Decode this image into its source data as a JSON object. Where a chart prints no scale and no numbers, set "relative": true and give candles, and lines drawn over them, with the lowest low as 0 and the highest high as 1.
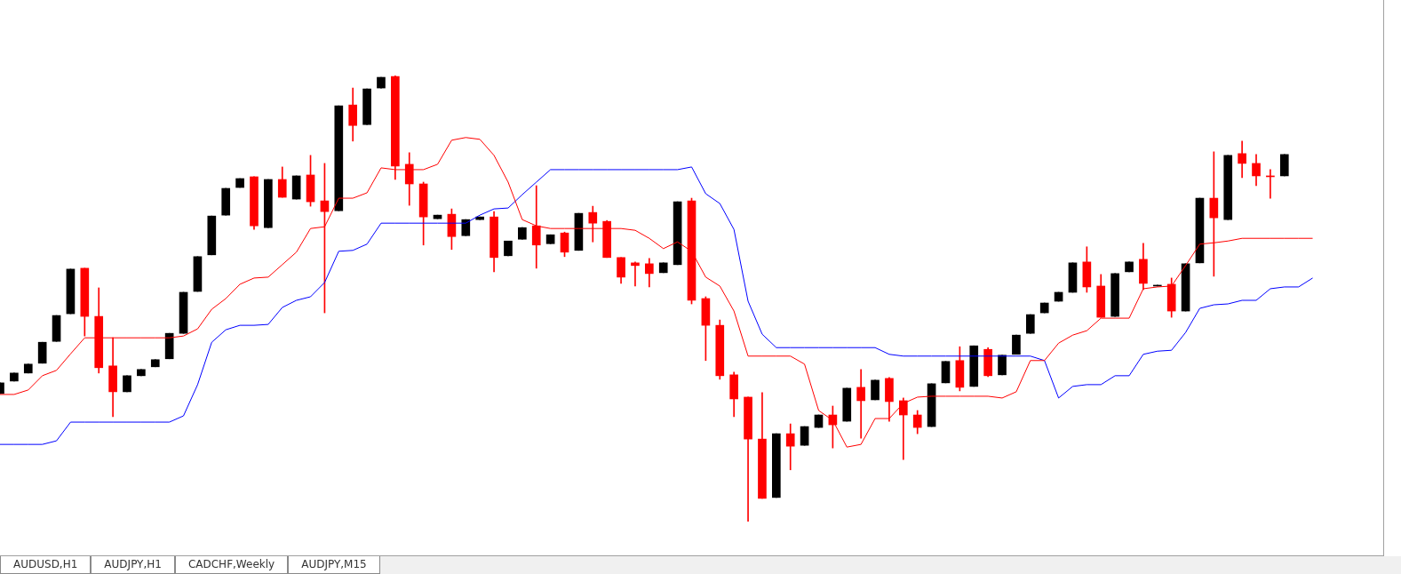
{
  "chart_data": {
    "type": "candlestick",
    "relative": true,
    "categories": [
      null,
      null,
      null,
      null,
      null,
      null,
      null,
      null,
      null,
      null,
      null,
      null,
      null,
      null,
      null,
      null,
      null,
      null,
      null,
      null,
      null,
      null,
      null,
      null,
      null,
      null,
      null,
      null,
      null,
      null,
      null,
      null,
      null,
      null,
      null,
      null,
      null,
      null,
      null,
      null,
      null,
      null,
      null,
      null,
      null,
      null,
      null,
      null,
      null,
      null,
      null,
      null,
      null,
      null,
      null,
      null,
      null,
      null,
      null,
      null,
      null,
      null,
      null,
      null,
      null,
      null,
      null,
      null,
      null,
      null,
      null,
      null,
      null,
      null,
      null,
      null,
      null,
      null,
      null,
      null,
      null,
      null,
      null,
      null,
      null,
      null,
      null,
      null,
      null,
      null,
      null,
      null,
      null,
      null,
      null,
      null,
      null,
      null,
      null
    ],
    "ohlc": [
      [
        0.287,
        0.311,
        0.287,
        0.311
      ],
      [
        0.315,
        0.333,
        0.315,
        0.333
      ],
      [
        0.333,
        0.353,
        0.333,
        0.353
      ],
      [
        0.355,
        0.402,
        0.355,
        0.402
      ],
      [
        0.404,
        0.462,
        0.404,
        0.462
      ],
      [
        0.466,
        0.566,
        0.466,
        0.566
      ],
      [
        0.568,
        0.568,
        0.416,
        0.46
      ],
      [
        0.46,
        0.524,
        0.333,
        0.345
      ],
      [
        0.349,
        0.412,
        0.235,
        0.291
      ],
      [
        0.291,
        0.327,
        0.291,
        0.327
      ],
      [
        0.327,
        0.341,
        0.327,
        0.341
      ],
      [
        0.347,
        0.363,
        0.347,
        0.363
      ],
      [
        0.365,
        0.422,
        0.365,
        0.422
      ],
      [
        0.422,
        0.514,
        0.422,
        0.514
      ],
      [
        0.516,
        0.594,
        0.516,
        0.594
      ],
      [
        0.598,
        0.685,
        0.598,
        0.685
      ],
      [
        0.687,
        0.747,
        0.687,
        0.747
      ],
      [
        0.749,
        0.769,
        0.749,
        0.769
      ],
      [
        0.773,
        0.773,
        0.655,
        0.663
      ],
      [
        0.659,
        0.767,
        0.659,
        0.767
      ],
      [
        0.767,
        0.795,
        0.727,
        0.727
      ],
      [
        0.723,
        0.775,
        0.723,
        0.775
      ],
      [
        0.777,
        0.821,
        0.707,
        0.717
      ],
      [
        0.719,
        0.803,
        0.468,
        0.695
      ],
      [
        0.697,
        0.932,
        0.697,
        0.932
      ],
      [
        0.934,
        0.972,
        0.853,
        0.888
      ],
      [
        0.89,
        0.97,
        0.89,
        0.97
      ],
      [
        0.972,
        0.996,
        0.972,
        0.996
      ],
      [
        0.998,
        1,
        0.767,
        0.797
      ],
      [
        0.801,
        0.827,
        0.709,
        0.757
      ],
      [
        0.757,
        0.761,
        0.62,
        0.683
      ],
      [
        0.679,
        0.687,
        0.679,
        0.687
      ],
      [
        0.689,
        0.701,
        0.61,
        0.639
      ],
      [
        0.641,
        0.677,
        0.641,
        0.677
      ],
      [
        0.677,
        0.683,
        0.677,
        0.683
      ],
      [
        0.683,
        0.695,
        0.56,
        0.592
      ],
      [
        0.596,
        0.629,
        0.596,
        0.629
      ],
      [
        0.633,
        0.659,
        0.633,
        0.659
      ],
      [
        0.663,
        0.753,
        0.568,
        0.62
      ],
      [
        0.623,
        0.643,
        0.623,
        0.643
      ],
      [
        0.647,
        0.649,
        0.594,
        0.604
      ],
      [
        0.608,
        0.691,
        0.608,
        0.691
      ],
      [
        0.693,
        0.707,
        0.627,
        0.669
      ],
      [
        0.673,
        0.675,
        0.592,
        0.592
      ],
      [
        0.592,
        0.592,
        0.534,
        0.548
      ],
      [
        0.58,
        0.582,
        0.528,
        0.574
      ],
      [
        0.578,
        0.59,
        0.526,
        0.556
      ],
      [
        0.558,
        0.58,
        0.558,
        0.58
      ],
      [
        0.576,
        0.717,
        0.576,
        0.717
      ],
      [
        0.719,
        0.725,
        0.488,
        0.496
      ],
      [
        0.5,
        0.504,
        0.361,
        0.44
      ],
      [
        0.44,
        0.452,
        0.319,
        0.327
      ],
      [
        0.329,
        0.335,
        0.235,
        0.275
      ],
      [
        0.279,
        0.279,
        0,
        0.185
      ],
      [
        0.185,
        0.289,
        0.052,
        0.052
      ],
      [
        0.054,
        0.197,
        0.054,
        0.197
      ],
      [
        0.197,
        0.219,
        0.116,
        0.169
      ],
      [
        0.171,
        0.213,
        0.171,
        0.213
      ],
      [
        0.211,
        0.239,
        0.211,
        0.239
      ],
      [
        0.239,
        0.259,
        0.165,
        0.217
      ],
      [
        0.225,
        0.299,
        0.225,
        0.299
      ],
      [
        0.301,
        0.341,
        0.187,
        0.271
      ],
      [
        0.273,
        0.317,
        0.273,
        0.317
      ],
      [
        0.321,
        0.323,
        0.225,
        0.269
      ],
      [
        0.271,
        0.277,
        0.139,
        0.239
      ],
      [
        0.239,
        0.249,
        0.197,
        0.211
      ],
      [
        0.213,
        0.309,
        0.213,
        0.309
      ],
      [
        0.311,
        0.359,
        0.311,
        0.359
      ],
      [
        0.361,
        0.392,
        0.293,
        0.301
      ],
      [
        0.303,
        0.394,
        0.303,
        0.394
      ],
      [
        0.386,
        0.39,
        0.325,
        0.327
      ],
      [
        0.329,
        0.373,
        0.329,
        0.373
      ],
      [
        0.375,
        0.418,
        0.375,
        0.418
      ],
      [
        0.422,
        0.464,
        0.422,
        0.464
      ],
      [
        0.468,
        0.49,
        0.468,
        0.49
      ],
      [
        0.494,
        0.514,
        0.494,
        0.514
      ],
      [
        0.514,
        0.58,
        0.514,
        0.58
      ],
      [
        0.582,
        0.616,
        0.514,
        0.526
      ],
      [
        0.528,
        0.554,
        0.458,
        0.458
      ],
      [
        0.46,
        0.556,
        0.46,
        0.556
      ],
      [
        0.56,
        0.582,
        0.56,
        0.582
      ],
      [
        0.588,
        0.624,
        0.52,
        0.534
      ],
      [
        0.528,
        0.53,
        0.528,
        0.53
      ],
      [
        0.532,
        0.546,
        0.458,
        0.472
      ],
      [
        0.472,
        0.578,
        0.472,
        0.578
      ],
      [
        0.58,
        0.725,
        0.58,
        0.725
      ],
      [
        0.725,
        0.829,
        0.55,
        0.681
      ],
      [
        0.677,
        0.821,
        0.677,
        0.821
      ],
      [
        0.825,
        0.853,
        0.771,
        0.803
      ],
      [
        0.803,
        0.823,
        0.753,
        0.775
      ],
      [
        0.775,
        0.789,
        0.725,
        0.773
      ],
      [
        0.775,
        0.823,
        0.775,
        0.823
      ],
      null,
      null,
      null,
      null,
      null,
      null,
      null
    ],
    "colors": [
      "#000000",
      "#000000",
      "#000000",
      "#000000",
      "#000000",
      "#000000",
      "#ff0000",
      "#ff0000",
      "#ff0000",
      "#000000",
      "#000000",
      "#000000",
      "#000000",
      "#000000",
      "#000000",
      "#000000",
      "#000000",
      "#000000",
      "#ff0000",
      "#000000",
      "#ff0000",
      "#000000",
      "#ff0000",
      "#ff0000",
      "#000000",
      "#ff0000",
      "#000000",
      "#000000",
      "#ff0000",
      "#ff0000",
      "#ff0000",
      "#000000",
      "#ff0000",
      "#000000",
      "#000000",
      "#ff0000",
      "#000000",
      "#000000",
      "#ff0000",
      "#000000",
      "#ff0000",
      "#000000",
      "#ff0000",
      "#ff0000",
      "#ff0000",
      "#ff0000",
      "#ff0000",
      "#000000",
      "#000000",
      "#ff0000",
      "#ff0000",
      "#ff0000",
      "#ff0000",
      "#ff0000",
      "#ff0000",
      "#000000",
      "#ff0000",
      "#000000",
      "#000000",
      "#ff0000",
      "#000000",
      "#ff0000",
      "#000000",
      "#ff0000",
      "#ff0000",
      "#ff0000",
      "#000000",
      "#000000",
      "#ff0000",
      "#000000",
      "#ff0000",
      "#000000",
      "#000000",
      "#000000",
      "#000000",
      "#000000",
      "#000000",
      "#ff0000",
      "#ff0000",
      "#000000",
      "#000000",
      "#ff0000",
      "#000000",
      "#ff0000",
      "#000000",
      "#000000",
      "#ff0000",
      "#000000",
      "#ff0000",
      "#ff0000",
      "#ff0000",
      "#000000",
      null,
      null,
      null,
      null,
      null,
      null,
      null
    ],
    "series": [
      {
        "type": "line",
        "color": "#ff0000",
        "values": [
          0.285,
          0.285,
          0.295,
          0.327,
          0.339,
          0.376,
          0.412,
          0.412,
          0.412,
          0.412,
          0.412,
          0.412,
          0.412,
          0.416,
          0.432,
          0.476,
          0.5,
          0.532,
          0.546,
          0.548,
          0.576,
          0.604,
          0.657,
          0.661,
          0.725,
          0.725,
          0.737,
          0.793,
          0.789,
          0.789,
          0.789,
          0.801,
          0.855,
          0.861,
          0.857,
          0.821,
          0.761,
          0.677,
          0.663,
          0.657,
          0.657,
          0.657,
          0.657,
          0.657,
          0.657,
          0.653,
          0.635,
          0.612,
          0.627,
          0.606,
          0.548,
          0.528,
          0.472,
          0.371,
          0.371,
          0.371,
          0.371,
          0.353,
          0.249,
          0.227,
          0.167,
          0.173,
          0.231,
          0.231,
          0.265,
          0.279,
          0.281,
          0.281,
          0.281,
          0.281,
          0.281,
          0.277,
          0.291,
          0.361,
          0.361,
          0.4,
          0.418,
          0.428,
          0.456,
          0.456,
          0.456,
          0.522,
          0.526,
          0.528,
          0.574,
          0.622,
          0.625,
          0.629,
          0.635,
          0.635,
          0.635,
          0.635,
          0.635,
          0.635,
          null,
          null,
          null,
          null,
          null
        ]
      },
      {
        "type": "line",
        "color": "#0000ff",
        "values": [
          0.173,
          0.173,
          0.173,
          0.173,
          0.181,
          0.223,
          0.223,
          0.223,
          0.223,
          0.223,
          0.223,
          0.223,
          0.223,
          0.237,
          0.307,
          0.402,
          0.43,
          0.44,
          0.44,
          0.442,
          0.48,
          0.496,
          0.504,
          0.536,
          0.606,
          0.608,
          0.622,
          0.669,
          0.669,
          0.669,
          0.669,
          0.669,
          0.669,
          0.669,
          0.687,
          0.701,
          0.703,
          0.733,
          0.761,
          0.789,
          0.789,
          0.789,
          0.789,
          0.789,
          0.789,
          0.789,
          0.789,
          0.789,
          0.789,
          0.795,
          0.735,
          0.713,
          0.655,
          0.494,
          0.42,
          0.39,
          0.39,
          0.39,
          0.39,
          0.39,
          0.39,
          0.39,
          0.39,
          0.375,
          0.371,
          0.371,
          0.371,
          0.371,
          0.371,
          0.371,
          0.371,
          0.371,
          0.371,
          0.371,
          0.361,
          0.277,
          0.303,
          0.307,
          0.307,
          0.327,
          0.327,
          0.375,
          0.382,
          0.384,
          0.424,
          0.478,
          0.486,
          0.488,
          0.496,
          0.496,
          0.522,
          0.526,
          0.526,
          0.546,
          null,
          null,
          null,
          null,
          null
        ]
      }
    ],
    "annotations": [
      "AUDUSD,H1",
      "AUDJPY,H1",
      "CADCHF,Weekly",
      "AUDJPY,M15"
    ]
  }
}
